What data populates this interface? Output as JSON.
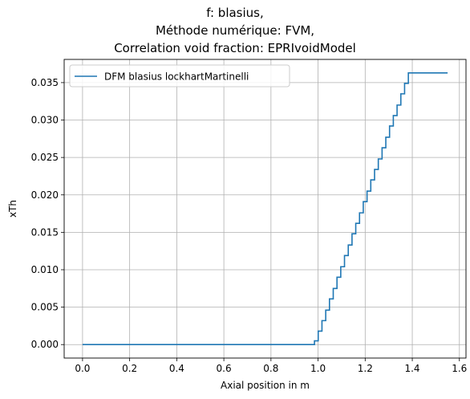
{
  "title_lines": [
    "f: blasius,",
    "Méthode numérique: FVM,",
    "Correlation void fraction: EPRIvoidModel"
  ],
  "chart_data": {
    "type": "line",
    "step": true,
    "title": "f: blasius,\nMéthode numérique: FVM,\nCorrelation void fraction: EPRIvoidModel",
    "xlabel": "Axial position in m",
    "ylabel": "xTh",
    "xlim": [
      -0.078,
      1.628
    ],
    "ylim": [
      -0.0018,
      0.0381
    ],
    "xticks": [
      0.0,
      0.2,
      0.4,
      0.6,
      0.8,
      1.0,
      1.2,
      1.4,
      1.6
    ],
    "xtick_labels": [
      "0.0",
      "0.2",
      "0.4",
      "0.6",
      "0.8",
      "1.0",
      "1.2",
      "1.4",
      "1.6"
    ],
    "yticks": [
      0.0,
      0.005,
      0.01,
      0.015,
      0.02,
      0.025,
      0.03,
      0.035
    ],
    "ytick_labels": [
      "0.000",
      "0.005",
      "0.010",
      "0.015",
      "0.020",
      "0.025",
      "0.030",
      "0.035"
    ],
    "grid": true,
    "legend_position": "upper-left",
    "series": [
      {
        "name": "DFM blasius lockhartMartinelli",
        "color": "#1f77b4",
        "x": [
          0.0,
          0.9687,
          0.9847,
          1.0006,
          1.0165,
          1.0325,
          1.0484,
          1.0644,
          1.0803,
          1.0963,
          1.1122,
          1.1282,
          1.1441,
          1.16,
          1.176,
          1.1919,
          1.2079,
          1.2238,
          1.2398,
          1.2557,
          1.2717,
          1.2876,
          1.3035,
          1.3195,
          1.3354,
          1.3514,
          1.3673,
          1.3833,
          1.3992,
          1.4151,
          1.4311,
          1.447,
          1.463,
          1.4789,
          1.4949,
          1.5108,
          1.5268,
          1.5427,
          1.55
        ],
        "y": [
          0.0,
          0.0,
          0.0005,
          0.0018,
          0.0032,
          0.0046,
          0.0061,
          0.0075,
          0.009,
          0.0104,
          0.0119,
          0.0133,
          0.0148,
          0.0162,
          0.0176,
          0.0191,
          0.0205,
          0.022,
          0.0234,
          0.0248,
          0.0263,
          0.0277,
          0.0292,
          0.0306,
          0.032,
          0.0335,
          0.0349,
          0.0363,
          0.0363,
          0.0363,
          0.0363,
          0.0363,
          0.0363,
          0.0363,
          0.0363,
          0.0363,
          0.0363,
          0.0363,
          0.0363
        ]
      }
    ]
  }
}
